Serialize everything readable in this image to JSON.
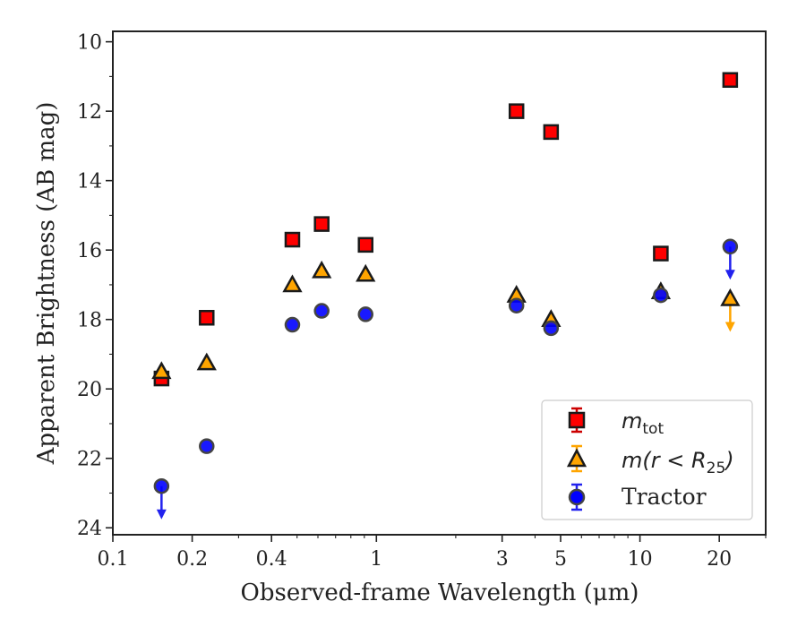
{
  "chart_data": {
    "type": "scatter",
    "xlabel": "Observed-frame Wavelength (μm)",
    "ylabel": "Apparent Brightness (AB mag)",
    "x_scale": "log",
    "xlim": [
      0.1,
      30
    ],
    "ylim": [
      24.2,
      9.7
    ],
    "y_inverted": true,
    "x_ticks": [
      {
        "value": 0.1,
        "label": "0.1"
      },
      {
        "value": 0.2,
        "label": "0.2"
      },
      {
        "value": 0.4,
        "label": "0.4"
      },
      {
        "value": 1,
        "label": "1"
      },
      {
        "value": 3,
        "label": "3"
      },
      {
        "value": 5,
        "label": "5"
      },
      {
        "value": 10,
        "label": "10"
      },
      {
        "value": 20,
        "label": "20"
      }
    ],
    "y_ticks": [
      {
        "value": 10,
        "label": "10"
      },
      {
        "value": 12,
        "label": "12"
      },
      {
        "value": 14,
        "label": "14"
      },
      {
        "value": 16,
        "label": "16"
      },
      {
        "value": 18,
        "label": "18"
      },
      {
        "value": 20,
        "label": "20"
      },
      {
        "value": 22,
        "label": "22"
      },
      {
        "value": 24,
        "label": "24"
      }
    ],
    "legend_position": "lower-right",
    "grid": false,
    "series": [
      {
        "name": "m_tot",
        "legend_main": "m",
        "legend_sub": "tot",
        "marker": "square",
        "color": "#ff0000",
        "edge_color": "#1a1a1a",
        "error_color": "#cc0000",
        "points": [
          {
            "x": 0.153,
            "y": 19.7
          },
          {
            "x": 0.227,
            "y": 17.95
          },
          {
            "x": 0.48,
            "y": 15.7
          },
          {
            "x": 0.62,
            "y": 15.25
          },
          {
            "x": 0.91,
            "y": 15.85
          },
          {
            "x": 3.4,
            "y": 12.0
          },
          {
            "x": 4.6,
            "y": 12.6
          },
          {
            "x": 12.0,
            "y": 16.1
          },
          {
            "x": 22.0,
            "y": 11.1
          }
        ]
      },
      {
        "name": "m(r < R_25)",
        "legend_main": "m(r < R",
        "legend_sub": "25",
        "legend_close": ")",
        "marker": "triangle",
        "color": "#ffa500",
        "edge_color": "#1a1a1a",
        "error_color": "#ffa500",
        "points": [
          {
            "x": 0.153,
            "y": 19.5
          },
          {
            "x": 0.227,
            "y": 19.25
          },
          {
            "x": 0.48,
            "y": 17.0
          },
          {
            "x": 0.62,
            "y": 16.6
          },
          {
            "x": 0.91,
            "y": 16.7
          },
          {
            "x": 3.4,
            "y": 17.3
          },
          {
            "x": 4.6,
            "y": 18.0
          },
          {
            "x": 12.0,
            "y": 17.2
          },
          {
            "x": 22.0,
            "y": 17.4,
            "upper_limit": true
          }
        ]
      },
      {
        "name": "Tractor",
        "legend_main": "Tractor",
        "marker": "circle",
        "color": "#0000ff",
        "edge_color": "#444444",
        "error_color": "#2222ee",
        "points": [
          {
            "x": 0.153,
            "y": 22.8,
            "upper_limit": true
          },
          {
            "x": 0.227,
            "y": 21.65
          },
          {
            "x": 0.48,
            "y": 18.15
          },
          {
            "x": 0.62,
            "y": 17.75
          },
          {
            "x": 0.91,
            "y": 17.85
          },
          {
            "x": 3.4,
            "y": 17.6
          },
          {
            "x": 4.6,
            "y": 18.25
          },
          {
            "x": 12.0,
            "y": 17.3
          },
          {
            "x": 22.0,
            "y": 15.9,
            "upper_limit": true
          }
        ]
      }
    ]
  }
}
